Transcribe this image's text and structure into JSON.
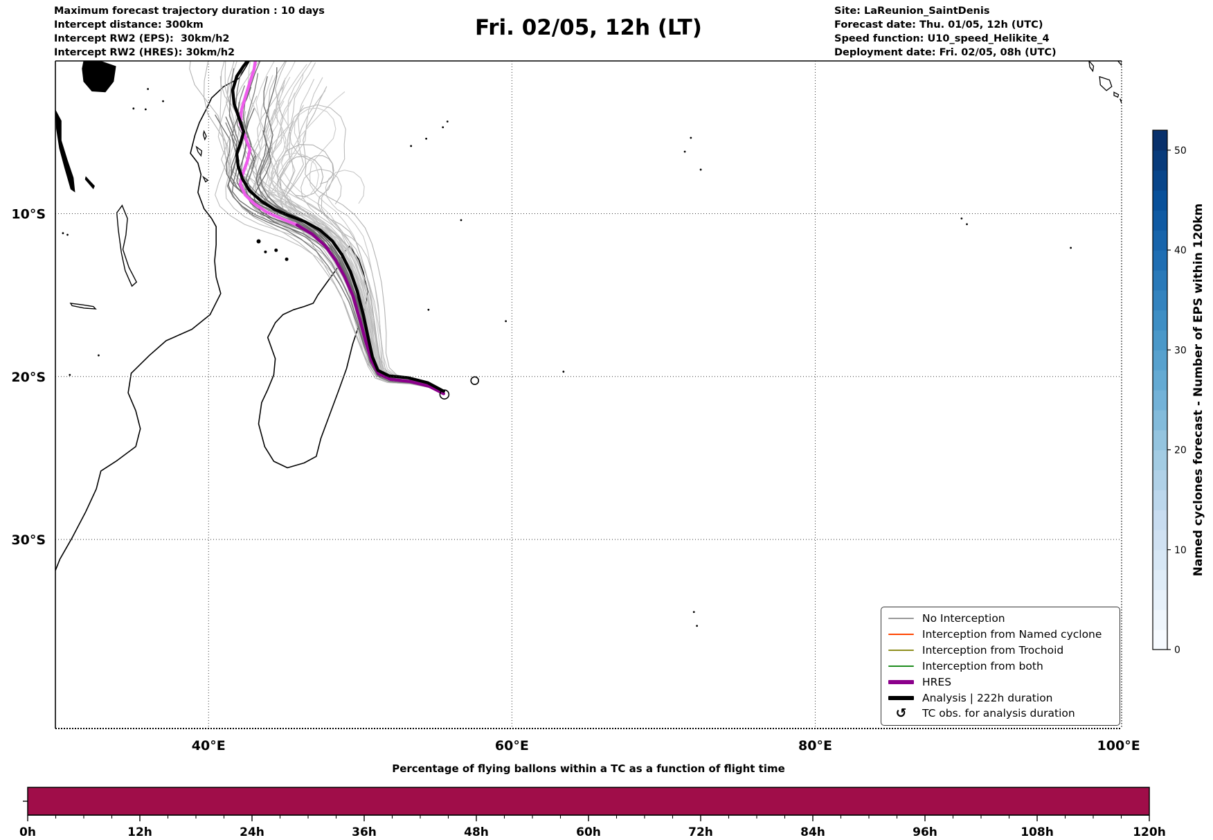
{
  "header": {
    "left_lines": [
      "Maximum forecast trajectory duration : 10 days",
      "Intercept distance: 300km",
      "Intercept RW2 (EPS):  30km/h2",
      "Intercept RW2 (HRES): 30km/h2"
    ],
    "title": "Fri. 02/05, 12h (LT)",
    "right_lines": [
      "Site: LaReunion_SaintDenis",
      "Forecast date: Thu. 01/05, 12h (UTC)",
      "Speed function: U10_speed_Helikite_4",
      "Deployment date: Fri. 02/05, 08h (UTC)"
    ]
  },
  "map": {
    "extent": {
      "lon_min": 29.9,
      "lon_max": 100.2,
      "lat_min": -41.6,
      "lat_max": -0.63
    },
    "lon_ticks": [
      {
        "label": "40°E",
        "lon": 40
      },
      {
        "label": "60°E",
        "lon": 60
      },
      {
        "label": "80°E",
        "lon": 80
      },
      {
        "label": "100°E",
        "lon": 100
      }
    ],
    "lat_ticks": [
      {
        "label": "10°S",
        "lat": -10
      },
      {
        "label": "20°S",
        "lat": -20
      },
      {
        "label": "30°S",
        "lat": -30
      }
    ],
    "legend_items": [
      {
        "label": "No Interception",
        "color": "#999999",
        "lw": 2,
        "type": "line"
      },
      {
        "label": "Interception from Named cyclone",
        "color": "#ff4500",
        "lw": 2,
        "type": "line"
      },
      {
        "label": "Interception from Trochoid",
        "color": "#8f8f1f",
        "lw": 2,
        "type": "line"
      },
      {
        "label": "Interception from both",
        "color": "#1e8c1e",
        "lw": 2,
        "type": "line"
      },
      {
        "label": "HRES",
        "color": "#8b008b",
        "lw": 6,
        "type": "line"
      },
      {
        "label": "Analysis | 222h duration",
        "color": "#000000",
        "lw": 6,
        "type": "line"
      },
      {
        "label": "TC obs. for analysis duration",
        "marker": "↺",
        "type": "marker"
      }
    ],
    "ensemble": {
      "light_count": 36,
      "looper_count": 9,
      "dark_count": 16,
      "light_gray_range": [
        172,
        206
      ],
      "dark_gray_range": [
        100,
        130
      ]
    }
  },
  "colorbar": {
    "label": "Named cyclones forecast - Number of EPS within 120km",
    "vmin": 0,
    "vmax": 52,
    "ticks": [
      0,
      10,
      20,
      30,
      40,
      50
    ],
    "palette": [
      "#f7fbff",
      "#deebf7",
      "#c6dbef",
      "#9ecae1",
      "#6baed6",
      "#4292c6",
      "#2171b5",
      "#08519c",
      "#08306b"
    ],
    "steps": 26
  },
  "bottom_chart": {
    "title": "Percentage of flying ballons within a TC as a function of flight time",
    "tick_labels": [
      "0h",
      "12h",
      "24h",
      "36h",
      "48h",
      "60h",
      "72h",
      "84h",
      "96h",
      "108h",
      "120h"
    ],
    "bar_color": "#a00d49"
  },
  "chart_data": [
    {
      "type": "line",
      "subtype": "trajectory_map",
      "title": "Fri. 02/05, 12h (LT)",
      "lon_range": [
        29.9,
        100.2
      ],
      "lat_range": [
        -41.6,
        -0.63
      ],
      "x_ticks": [
        "40°E",
        "60°E",
        "80°E",
        "100°E"
      ],
      "y_ticks": [
        "10°S",
        "20°S",
        "30°S"
      ],
      "grid": "dotted",
      "legend_position": "lower right",
      "deployment_site": {
        "name": "LaReunion_SaintDenis",
        "lon": 55.5,
        "lat": -21.0
      },
      "series": [
        {
          "name": "Analysis | 222h duration",
          "color": "#000000",
          "points_lonlat": [
            [
              55.5,
              -20.9
            ],
            [
              54.45,
              -20.38
            ],
            [
              53.17,
              -20.08
            ],
            [
              51.9,
              -19.96
            ],
            [
              51.17,
              -19.62
            ],
            [
              50.8,
              -18.78
            ],
            [
              50.53,
              -17.63
            ],
            [
              50.21,
              -16.23
            ],
            [
              49.8,
              -14.74
            ],
            [
              49.35,
              -13.55
            ],
            [
              48.8,
              -12.53
            ],
            [
              48.16,
              -11.68
            ],
            [
              47.34,
              -11.0
            ],
            [
              46.34,
              -10.49
            ],
            [
              45.29,
              -10.11
            ],
            [
              44.33,
              -9.73
            ],
            [
              43.46,
              -9.22
            ],
            [
              42.69,
              -8.58
            ],
            [
              42.23,
              -7.86
            ],
            [
              41.95,
              -7.1
            ],
            [
              41.86,
              -6.33
            ],
            [
              42.13,
              -5.6
            ],
            [
              42.31,
              -4.97
            ],
            [
              42.0,
              -4.12
            ],
            [
              41.68,
              -3.27
            ],
            [
              41.59,
              -2.42
            ],
            [
              41.86,
              -1.57
            ],
            [
              42.31,
              -0.93
            ],
            [
              42.58,
              -0.63
            ]
          ]
        },
        {
          "name": "HRES",
          "color": "#8b008b",
          "bright_color": "#ee5cec",
          "bright_from_index": 13,
          "points_lonlat": [
            [
              55.5,
              -21.05
            ],
            [
              54.55,
              -20.6
            ],
            [
              53.26,
              -20.3
            ],
            [
              51.99,
              -20.17
            ],
            [
              51.21,
              -19.83
            ],
            [
              50.75,
              -19.04
            ],
            [
              50.39,
              -17.93
            ],
            [
              49.98,
              -16.53
            ],
            [
              49.53,
              -15.08
            ],
            [
              48.98,
              -13.89
            ],
            [
              48.38,
              -12.87
            ],
            [
              47.7,
              -11.98
            ],
            [
              46.83,
              -11.26
            ],
            [
              45.83,
              -10.7
            ],
            [
              44.73,
              -10.28
            ],
            [
              43.82,
              -9.9
            ],
            [
              43.0,
              -9.39
            ],
            [
              42.41,
              -8.84
            ],
            [
              42.09,
              -8.2
            ],
            [
              42.27,
              -7.52
            ],
            [
              42.55,
              -6.8
            ],
            [
              42.73,
              -6.07
            ],
            [
              42.41,
              -5.27
            ],
            [
              42.09,
              -4.46
            ],
            [
              42.18,
              -3.61
            ],
            [
              42.45,
              -2.76
            ],
            [
              42.73,
              -1.91
            ],
            [
              43.0,
              -1.14
            ],
            [
              43.09,
              -0.63
            ]
          ]
        },
        {
          "name": "EPS ensemble (No Interception)",
          "color": "#b0b0b0",
          "count": 61,
          "note": "fan of gray ensemble trajectories from La Reunion toward the NNW, procedurally approximated"
        }
      ]
    },
    {
      "type": "bar",
      "title": "Percentage of flying ballons within a TC as a function of flight time",
      "x_ticks": [
        "0h",
        "12h",
        "24h",
        "36h",
        "48h",
        "60h",
        "72h",
        "84h",
        "96h",
        "108h",
        "120h"
      ],
      "x_range_hours": [
        0,
        120
      ],
      "series": [
        {
          "name": "percentage",
          "segments": [
            {
              "x0": 0,
              "x1": 120,
              "value": 100
            }
          ]
        }
      ],
      "color": "#a00d49"
    },
    {
      "type": "colorbar",
      "label": "Named cyclones forecast - Number of EPS within 120km",
      "range": [
        0,
        52
      ],
      "ticks": [
        0,
        10,
        20,
        30,
        40,
        50
      ],
      "colormap": "Blues"
    }
  ],
  "geo": {
    "africa_coast": [
      [
        42.7,
        -0.63
      ],
      [
        42.0,
        -1.7
      ],
      [
        41.0,
        -2.2
      ],
      [
        40.2,
        -2.9
      ],
      [
        39.9,
        -3.5
      ],
      [
        39.4,
        -4.4
      ],
      [
        39.1,
        -5.2
      ],
      [
        38.8,
        -6.3
      ],
      [
        39.3,
        -6.9
      ],
      [
        39.5,
        -7.6
      ],
      [
        39.3,
        -8.7
      ],
      [
        39.7,
        -9.7
      ],
      [
        40.2,
        -10.3
      ],
      [
        40.5,
        -10.8
      ],
      [
        40.5,
        -11.9
      ],
      [
        40.4,
        -12.9
      ],
      [
        40.5,
        -13.9
      ],
      [
        40.8,
        -14.9
      ],
      [
        40.1,
        -16.2
      ],
      [
        38.9,
        -17.1
      ],
      [
        37.2,
        -17.8
      ],
      [
        36.1,
        -18.7
      ],
      [
        34.9,
        -19.8
      ],
      [
        34.7,
        -21.0
      ],
      [
        35.2,
        -22.1
      ],
      [
        35.5,
        -23.2
      ],
      [
        35.2,
        -24.3
      ],
      [
        33.9,
        -25.2
      ],
      [
        32.9,
        -25.8
      ],
      [
        32.6,
        -26.9
      ],
      [
        31.9,
        -28.3
      ],
      [
        31.0,
        -29.9
      ],
      [
        30.2,
        -31.2
      ],
      [
        29.9,
        -31.9
      ]
    ],
    "madagascar": [
      [
        49.3,
        -12.0
      ],
      [
        49.9,
        -12.8
      ],
      [
        50.2,
        -13.6
      ],
      [
        50.5,
        -14.8
      ],
      [
        50.3,
        -15.9
      ],
      [
        49.9,
        -16.9
      ],
      [
        49.5,
        -18.0
      ],
      [
        49.1,
        -19.5
      ],
      [
        48.6,
        -20.8
      ],
      [
        48.0,
        -22.3
      ],
      [
        47.4,
        -23.8
      ],
      [
        47.1,
        -24.9
      ],
      [
        46.3,
        -25.3
      ],
      [
        45.2,
        -25.6
      ],
      [
        44.3,
        -25.2
      ],
      [
        43.7,
        -24.3
      ],
      [
        43.3,
        -22.9
      ],
      [
        43.5,
        -21.6
      ],
      [
        43.9,
        -20.8
      ],
      [
        44.3,
        -19.9
      ],
      [
        44.4,
        -18.9
      ],
      [
        43.9,
        -17.6
      ],
      [
        44.4,
        -16.7
      ],
      [
        44.9,
        -16.2
      ],
      [
        45.6,
        -15.9
      ],
      [
        46.3,
        -15.7
      ],
      [
        46.9,
        -15.5
      ],
      [
        47.2,
        -15.0
      ],
      [
        47.9,
        -14.1
      ],
      [
        48.6,
        -13.2
      ],
      [
        48.9,
        -12.4
      ],
      [
        49.3,
        -12.0
      ]
    ],
    "lakes_filled": [
      [
        [
          31.75,
          -0.63
        ],
        [
          32.9,
          -0.63
        ],
        [
          33.9,
          -0.95
        ],
        [
          33.75,
          -1.9
        ],
        [
          33.2,
          -2.55
        ],
        [
          32.3,
          -2.5
        ],
        [
          31.75,
          -1.9
        ],
        [
          31.65,
          -1.1
        ],
        [
          31.75,
          -0.63
        ]
      ],
      [
        [
          29.9,
          -3.6
        ],
        [
          30.3,
          -4.3
        ],
        [
          30.3,
          -5.5
        ],
        [
          30.7,
          -6.7
        ],
        [
          31.1,
          -7.8
        ],
        [
          31.2,
          -8.7
        ],
        [
          30.9,
          -8.5
        ],
        [
          30.5,
          -7.2
        ],
        [
          30.15,
          -6.0
        ],
        [
          29.95,
          -4.8
        ],
        [
          29.9,
          -3.6
        ]
      ],
      [
        [
          31.9,
          -7.7
        ],
        [
          32.5,
          -8.3
        ],
        [
          32.4,
          -8.5
        ],
        [
          31.85,
          -7.9
        ],
        [
          31.9,
          -7.7
        ]
      ]
    ],
    "lakes_outline": [
      [
        [
          34.3,
          -9.5
        ],
        [
          34.65,
          -10.3
        ],
        [
          34.55,
          -11.3
        ],
        [
          34.35,
          -12.2
        ],
        [
          34.75,
          -13.3
        ],
        [
          35.25,
          -14.2
        ],
        [
          34.95,
          -14.45
        ],
        [
          34.5,
          -13.5
        ],
        [
          34.25,
          -12.4
        ],
        [
          34.05,
          -11.0
        ],
        [
          33.95,
          -9.95
        ],
        [
          34.3,
          -9.5
        ]
      ],
      [
        [
          30.9,
          -15.5
        ],
        [
          31.7,
          -15.6
        ],
        [
          32.4,
          -15.7
        ],
        [
          32.55,
          -15.85
        ],
        [
          31.8,
          -15.8
        ],
        [
          31.0,
          -15.65
        ],
        [
          30.9,
          -15.5
        ]
      ]
    ],
    "island_outlines": [
      [
        [
          39.2,
          -5.9
        ],
        [
          39.55,
          -6.15
        ],
        [
          39.5,
          -6.45
        ],
        [
          39.3,
          -6.2
        ],
        [
          39.2,
          -5.9
        ]
      ],
      [
        [
          39.7,
          -4.95
        ],
        [
          39.85,
          -5.25
        ],
        [
          39.75,
          -5.45
        ],
        [
          39.65,
          -5.15
        ],
        [
          39.7,
          -4.95
        ]
      ],
      [
        [
          39.65,
          -7.75
        ],
        [
          39.95,
          -7.95
        ],
        [
          39.8,
          -8.05
        ],
        [
          39.65,
          -7.75
        ]
      ],
      [
        [
          98.05,
          -0.63
        ],
        [
          98.35,
          -0.95
        ],
        [
          98.3,
          -1.25
        ],
        [
          98.1,
          -1.0
        ],
        [
          98.05,
          -0.63
        ]
      ],
      [
        [
          98.75,
          -1.6
        ],
        [
          99.4,
          -1.8
        ],
        [
          99.55,
          -2.2
        ],
        [
          99.2,
          -2.45
        ],
        [
          98.8,
          -2.1
        ],
        [
          98.75,
          -1.6
        ]
      ],
      [
        [
          99.7,
          -2.55
        ],
        [
          100.0,
          -2.7
        ],
        [
          99.95,
          -2.85
        ],
        [
          99.7,
          -2.75
        ],
        [
          99.7,
          -2.55
        ]
      ],
      [
        [
          99.95,
          -0.63
        ],
        [
          100.2,
          -0.9
        ],
        [
          100.2,
          -0.63
        ],
        [
          99.95,
          -0.63
        ]
      ]
    ],
    "edge_strokes": [
      [
        [
          100.1,
          -2.95
        ],
        [
          100.2,
          -3.2
        ]
      ]
    ],
    "filled_blobs": [
      {
        "lon": 43.3,
        "lat": -11.7,
        "r": 3
      },
      {
        "lon": 43.75,
        "lat": -12.35,
        "r": 2
      },
      {
        "lon": 44.45,
        "lat": -12.25,
        "r": 2.5
      },
      {
        "lon": 45.15,
        "lat": -12.8,
        "r": 2.5
      }
    ],
    "specks": [
      [
        36.0,
        -2.35
      ],
      [
        35.05,
        -3.55
      ],
      [
        35.85,
        -3.6
      ],
      [
        37.0,
        -3.1
      ],
      [
        30.4,
        -11.2
      ],
      [
        30.7,
        -11.3
      ],
      [
        30.85,
        -19.9
      ],
      [
        32.75,
        -18.7
      ],
      [
        55.45,
        -4.7
      ],
      [
        55.75,
        -4.35
      ],
      [
        53.35,
        -5.85
      ],
      [
        54.35,
        -5.4
      ],
      [
        56.65,
        -10.4
      ],
      [
        54.5,
        -15.9
      ],
      [
        59.6,
        -16.6
      ],
      [
        63.4,
        -19.7
      ],
      [
        71.8,
        -5.35
      ],
      [
        72.45,
        -7.3
      ],
      [
        71.4,
        -6.2
      ],
      [
        89.65,
        -10.3
      ],
      [
        90.0,
        -10.65
      ],
      [
        96.85,
        -12.1
      ],
      [
        72.0,
        -34.45
      ],
      [
        72.2,
        -35.3
      ]
    ],
    "ring_islands": [
      {
        "name": "reunion",
        "lon": 55.55,
        "lat": -21.1,
        "r": 6.5
      },
      {
        "name": "mauritius",
        "lon": 57.55,
        "lat": -20.25,
        "r": 5.5
      }
    ]
  }
}
